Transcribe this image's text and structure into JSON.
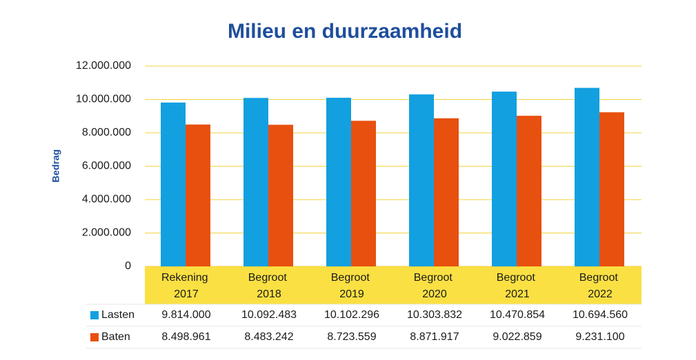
{
  "chart_data": {
    "type": "bar",
    "title": "Milieu en duurzaamheid",
    "y_label": "Bedrag",
    "categories": [
      "Rekening 2017",
      "Begroot 2018",
      "Begroot 2019",
      "Begroot 2020",
      "Begroot 2021",
      "Begroot 2022"
    ],
    "series": [
      {
        "name": "Lasten",
        "color": "#12a0e0",
        "values": [
          9814000,
          10092483,
          10102296,
          10303832,
          10470854,
          10694560
        ],
        "value_labels": [
          "9.814.000",
          "10.092.483",
          "10.102.296",
          "10.303.832",
          "10.470.854",
          "10.694.560"
        ]
      },
      {
        "name": "Baten",
        "color": "#e8500f",
        "values": [
          8498961,
          8483242,
          8723559,
          8871917,
          9022859,
          9231100
        ],
        "value_labels": [
          "8.498.961",
          "8.483.242",
          "8.723.559",
          "8.871.917",
          "9.022.859",
          "9.231.100"
        ]
      }
    ],
    "ylim": [
      0,
      12000000
    ],
    "yticks": [
      0,
      {
        "value": 2000000,
        "label": "2.000.000"
      },
      {
        "value": 4000000,
        "label": "4.000.000"
      },
      {
        "value": 6000000,
        "label": "6.000.000"
      },
      {
        "value": 8000000,
        "label": "8.000.000"
      },
      {
        "value": 10000000,
        "label": "10.000.000"
      },
      {
        "value": 12000000,
        "label": "12.000.000"
      }
    ],
    "grid": true
  }
}
